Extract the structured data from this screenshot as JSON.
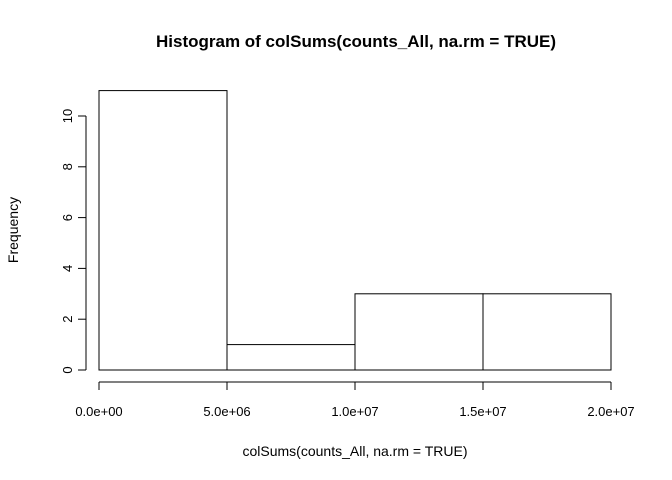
{
  "chart_data": {
    "type": "bar",
    "title": "Histogram of colSums(counts_All, na.rm = TRUE)",
    "xlabel": "colSums(counts_All, na.rm = TRUE)",
    "ylabel": "Frequency",
    "bins": [
      {
        "from": 0,
        "to": 5000000,
        "count": 11
      },
      {
        "from": 5000000,
        "to": 10000000,
        "count": 1
      },
      {
        "from": 10000000,
        "to": 15000000,
        "count": 3
      },
      {
        "from": 15000000,
        "to": 20000000,
        "count": 3
      }
    ],
    "xlim": [
      0,
      20000000
    ],
    "ylim": [
      0,
      11
    ],
    "x_ticks": [
      0,
      5000000,
      10000000,
      15000000,
      20000000
    ],
    "x_tick_labels": [
      "0.0e+00",
      "5.0e+06",
      "1.0e+07",
      "1.5e+07",
      "2.0e+07"
    ],
    "y_ticks": [
      0,
      2,
      4,
      6,
      8,
      10
    ],
    "y_tick_labels": [
      "0",
      "2",
      "4",
      "6",
      "8",
      "10"
    ],
    "grid": false,
    "bar_fill": "#ffffff",
    "bar_stroke": "#000000"
  }
}
